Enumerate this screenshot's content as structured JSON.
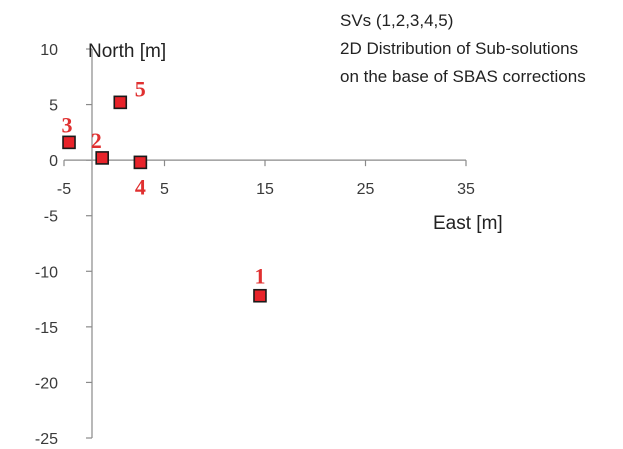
{
  "chart_data": {
    "type": "scatter",
    "xlabel": "East [m]",
    "ylabel": "North [m]",
    "xlim": [
      -5,
      35
    ],
    "ylim": [
      -25,
      10
    ],
    "xticks": [
      -5,
      5,
      15,
      25,
      35
    ],
    "yticks": [
      10,
      5,
      0,
      -5,
      -10,
      -15,
      -20,
      -25
    ],
    "grid": false,
    "annotation": [
      "SVs (1,2,3,4,5)",
      "2D Distribution of Sub-solutions",
      "on the base of SBAS corrections"
    ],
    "points": [
      {
        "label": "1",
        "x": 14.5,
        "y": -12.2
      },
      {
        "label": "2",
        "x": -1.2,
        "y": 0.2
      },
      {
        "label": "3",
        "x": -4.5,
        "y": 1.6
      },
      {
        "label": "4",
        "x": 2.6,
        "y": -0.2
      },
      {
        "label": "5",
        "x": 0.6,
        "y": 5.2
      }
    ],
    "marker_color": "#e8232a",
    "label_color": "#e03030"
  }
}
